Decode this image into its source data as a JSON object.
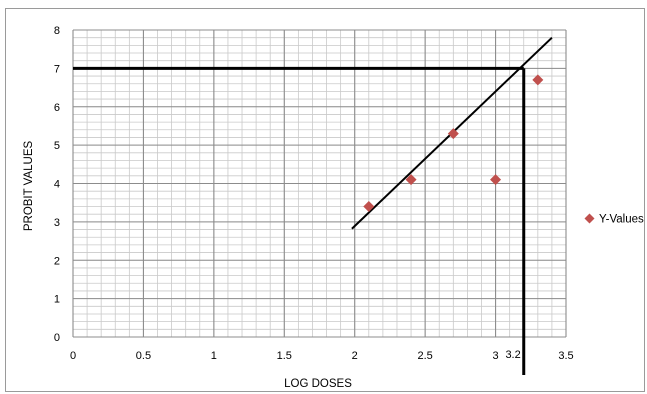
{
  "chart_data": {
    "type": "scatter",
    "title": "",
    "xlabel": "LOG DOSES",
    "ylabel": "PROBIT VALUES",
    "xlim": [
      0,
      3.5
    ],
    "ylim": [
      0,
      8
    ],
    "x_ticks": [
      "0",
      "0.5",
      "1",
      "1.5",
      "2",
      "2.5",
      "3",
      "3.5"
    ],
    "y_ticks": [
      "0",
      "1",
      "2",
      "3",
      "4",
      "5",
      "6",
      "7",
      "8"
    ],
    "grid": true,
    "legend_position": "right",
    "series": [
      {
        "name": "Y-Values",
        "color": "#c0504d",
        "marker": "diamond",
        "x": [
          2.1,
          2.4,
          2.7,
          3.0,
          3.3
        ],
        "y": [
          3.4,
          4.1,
          5.3,
          4.1,
          6.7
        ]
      }
    ],
    "trendline": {
      "x": [
        1.98,
        3.4
      ],
      "y": [
        2.82,
        7.8
      ],
      "color": "#000000"
    },
    "reference_lines": {
      "horizontal_y": 7,
      "vertical_x": 3.2,
      "color": "#000000",
      "annotation": "3.2"
    }
  }
}
